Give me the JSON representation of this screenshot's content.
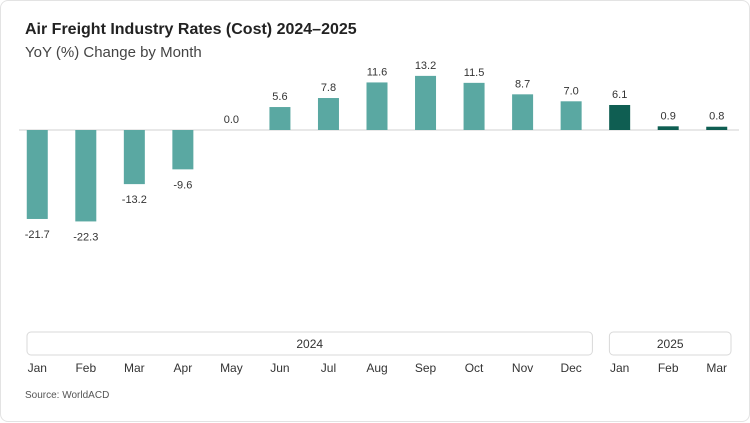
{
  "title": "Air Freight Industry Rates (Cost) 2024–2025",
  "subtitle": "YoY (%) Change by Month",
  "source": "Source: WorldACD",
  "colors": {
    "bar_2024": "#5aa8a2",
    "bar_2025": "#0f5e52",
    "axis": "#d0d0d0",
    "label": "#333333",
    "group_border": "#d9d9d9"
  },
  "chart_data": {
    "type": "bar",
    "title": "Air Freight Industry Rates (Cost) 2024–2025",
    "subtitle": "YoY (%) Change by Month",
    "categories": [
      "Jan",
      "Feb",
      "Mar",
      "Apr",
      "May",
      "Jun",
      "Jul",
      "Aug",
      "Sep",
      "Oct",
      "Nov",
      "Dec",
      "Jan",
      "Feb",
      "Mar"
    ],
    "values": [
      -21.7,
      -22.3,
      -13.2,
      -9.6,
      0.0,
      5.6,
      7.8,
      11.6,
      13.2,
      11.5,
      8.7,
      7.0,
      6.1,
      0.9,
      0.8
    ],
    "value_labels": [
      "-21.7",
      "-22.3",
      "-13.2",
      "-9.6",
      "0.0",
      "5.6",
      "7.8",
      "11.6",
      "13.2",
      "11.5",
      "8.7",
      "7.0",
      "6.1",
      "0.9",
      "0.8"
    ],
    "groups": [
      {
        "label": "2024",
        "start": 0,
        "end": 11
      },
      {
        "label": "2025",
        "start": 12,
        "end": 14
      }
    ],
    "ylim": [
      -25,
      15
    ],
    "grid": false,
    "legend": "none"
  }
}
